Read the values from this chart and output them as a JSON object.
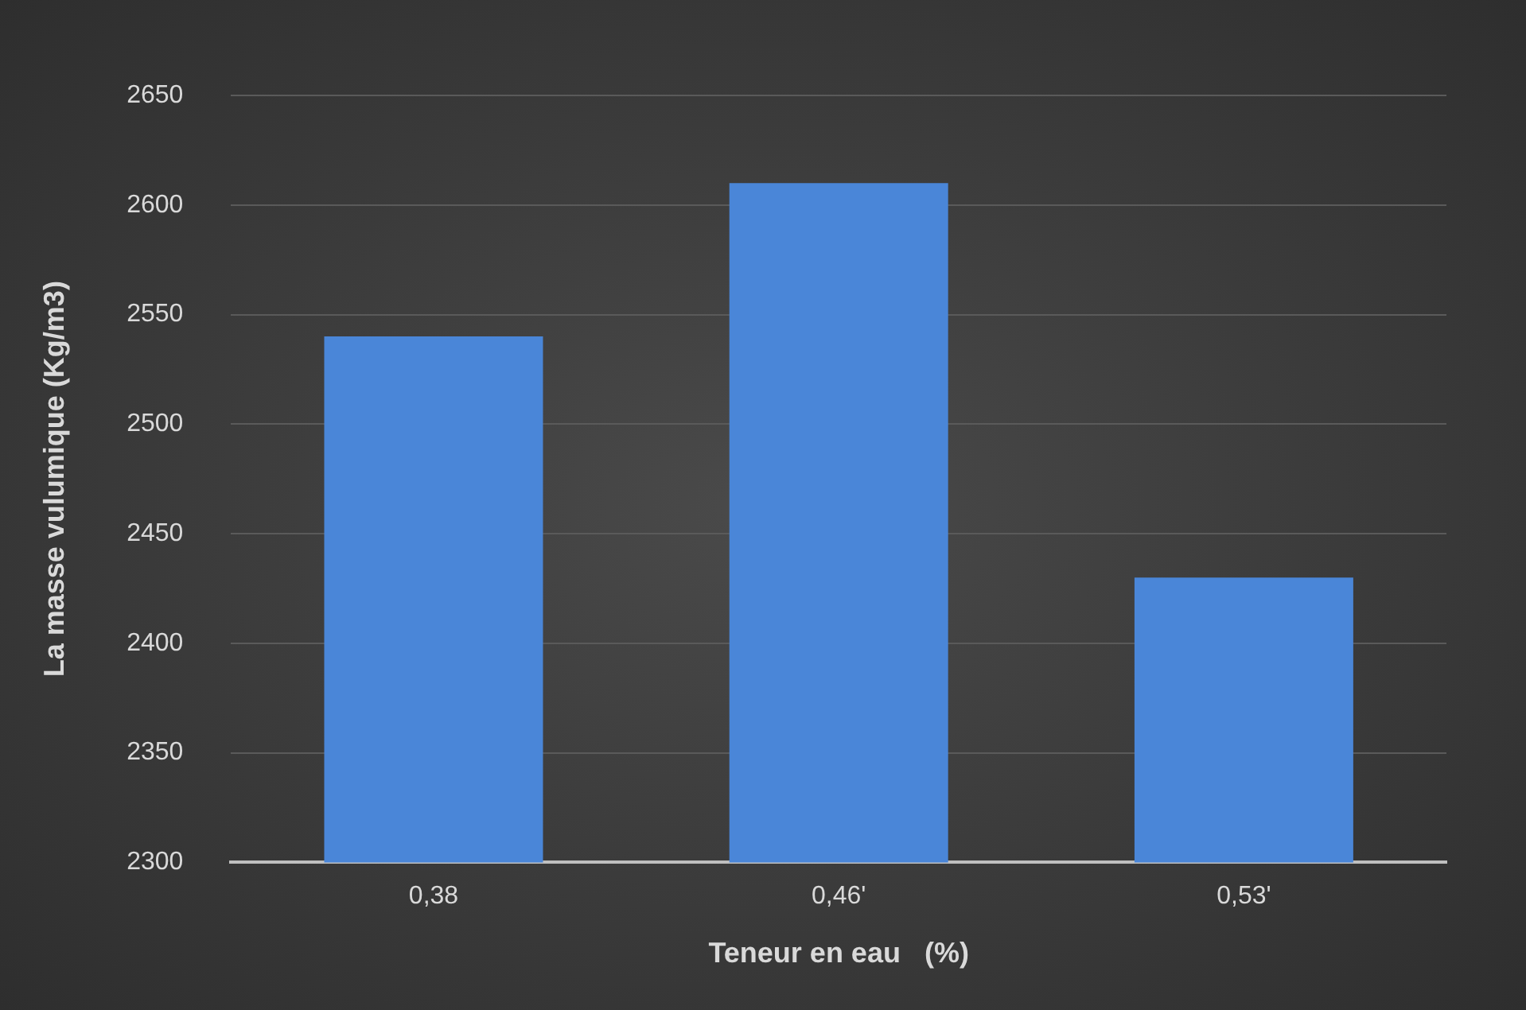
{
  "chart_data": {
    "type": "bar",
    "xlabel": "Teneur en eau   (%)",
    "ylabel": "La masse vulumique (Kg/m3)",
    "categories": [
      "0,38",
      "0,46'",
      "0,53'"
    ],
    "values": [
      2540,
      2610,
      2430
    ],
    "color": "#4a86d8",
    "ylim": [
      2300,
      2650
    ],
    "yticks": [
      2300,
      2350,
      2400,
      2450,
      2500,
      2550,
      2600,
      2650
    ],
    "grid": "y"
  }
}
